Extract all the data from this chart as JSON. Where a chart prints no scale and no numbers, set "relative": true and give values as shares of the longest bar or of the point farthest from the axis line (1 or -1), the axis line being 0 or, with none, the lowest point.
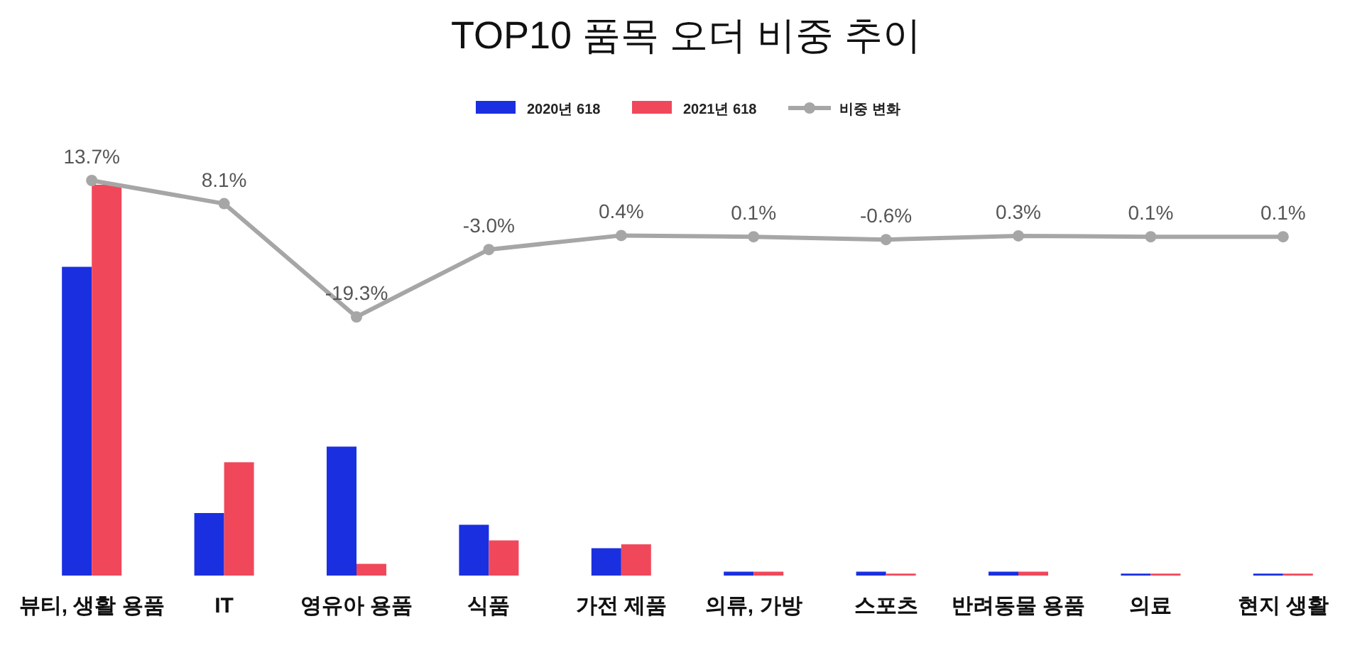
{
  "chart_data": [
    {
      "type": "bar",
      "title": "TOP10 품목 오더 비중 추이",
      "categories": [
        "뷰티, 생활 용품",
        "IT",
        "영유아 용품",
        "식품",
        "가전 제품",
        "의류, 가방",
        "스포츠",
        "반려동물 용품",
        "의료",
        "현지 생활"
      ],
      "relative": true,
      "legend": "top",
      "series": [
        {
          "name": "2020년 618",
          "color": "#1a2fe0",
          "values": [
            0.79,
            0.16,
            0.33,
            0.13,
            0.07,
            0.01,
            0.01,
            0.01,
            0.005,
            0.005
          ]
        },
        {
          "name": "2021년 618",
          "color": "#f0485a",
          "values": [
            1,
            0.29,
            0.03,
            0.09,
            0.08,
            0.01,
            0.005,
            0.01,
            0.005,
            0.005
          ]
        }
      ]
    },
    {
      "type": "line",
      "categories": [
        null,
        null,
        null,
        null,
        null,
        null,
        null,
        null,
        null,
        null
      ],
      "legend": "top",
      "marker": "circle",
      "series": [
        {
          "name": "비중 변화",
          "color": "#a6a6a6",
          "values": [
            13.7,
            8.1,
            -19.3,
            -3.0,
            0.4,
            0.1,
            -0.6,
            0.3,
            0.1,
            0.1
          ],
          "value_labels": [
            "13.7%",
            "8.1%",
            "-19.3%",
            "-3.0%",
            "0.4%",
            "0.1%",
            "-0.6%",
            "0.3%",
            "0.1%",
            "0.1%"
          ]
        }
      ]
    }
  ]
}
